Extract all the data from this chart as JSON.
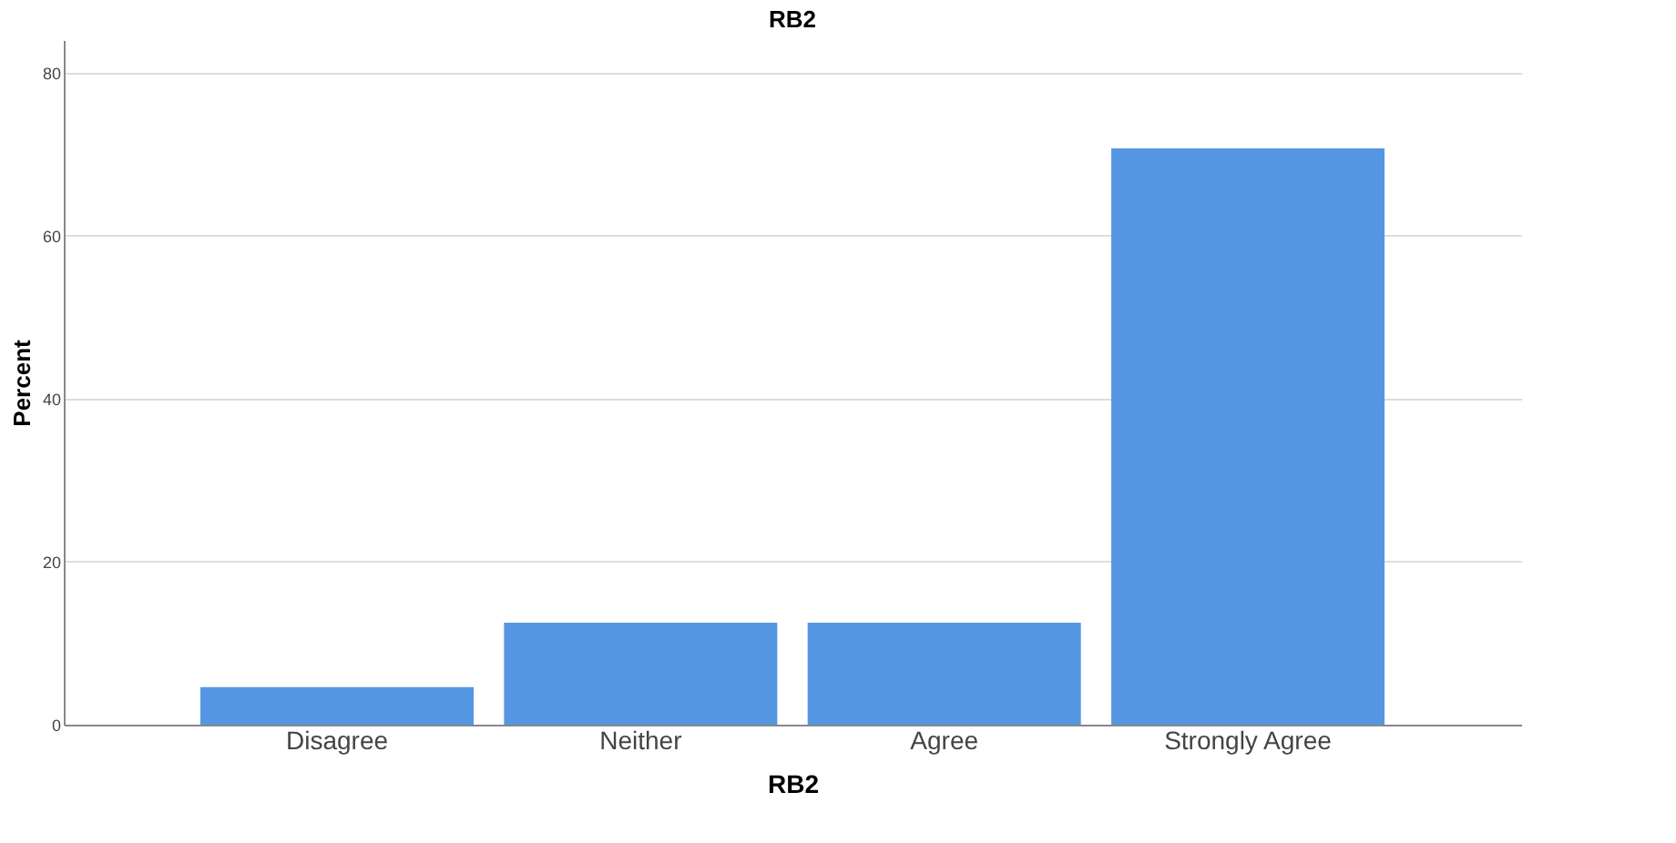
{
  "chart_data": {
    "type": "bar",
    "title": "RB2",
    "xlabel": "RB2",
    "ylabel": "Percent",
    "categories": [
      "Disagree",
      "Neither",
      "Agree",
      "Strongly Agree"
    ],
    "values": [
      4.6,
      12.5,
      12.5,
      70.7
    ],
    "color": "#5596e3",
    "ylim": [
      0,
      84
    ],
    "yticks": [
      0,
      20,
      40,
      60,
      80
    ],
    "grid": "y"
  }
}
